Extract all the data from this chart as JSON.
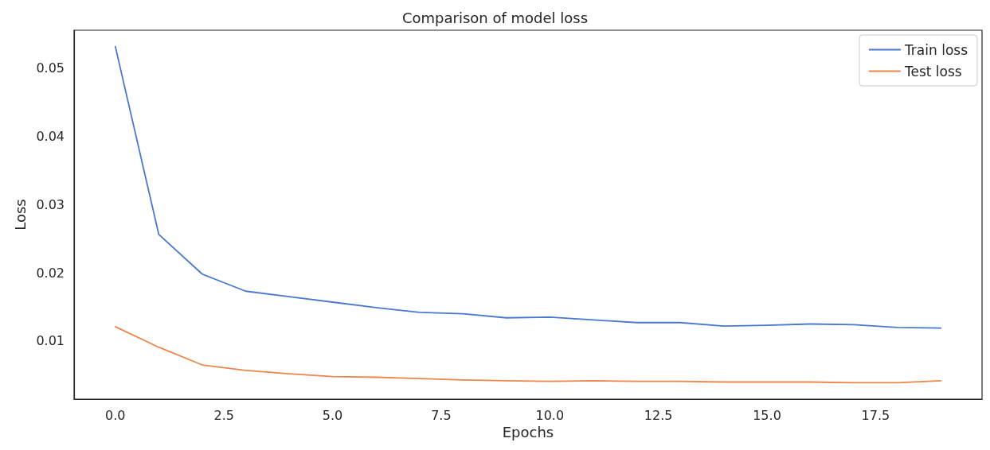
{
  "chart_data": {
    "type": "line",
    "title": "Comparison of model loss",
    "xlabel": "Epochs",
    "ylabel": "Loss",
    "x": [
      0,
      1,
      2,
      3,
      4,
      5,
      6,
      7,
      8,
      9,
      10,
      11,
      12,
      13,
      14,
      15,
      16,
      17,
      18,
      19
    ],
    "series": [
      {
        "name": "Train loss",
        "color": "#4878d0",
        "values": [
          0.0531,
          0.0256,
          0.0198,
          0.0173,
          0.0165,
          0.0157,
          0.0149,
          0.0142,
          0.014,
          0.0134,
          0.0135,
          0.0131,
          0.0127,
          0.0127,
          0.0122,
          0.0123,
          0.0125,
          0.0124,
          0.012,
          0.0119
        ]
      },
      {
        "name": "Test loss",
        "color": "#ee854a",
        "values": [
          0.0121,
          0.0091,
          0.0065,
          0.0057,
          0.0052,
          0.0048,
          0.0047,
          0.0045,
          0.0043,
          0.0042,
          0.0041,
          0.0042,
          0.0041,
          0.0041,
          0.004,
          0.004,
          0.004,
          0.0039,
          0.0039,
          0.0042
        ]
      }
    ],
    "xlim": [
      -0.95,
      19.95
    ],
    "xticks": [
      {
        "value": 0,
        "label": "0.0"
      },
      {
        "value": 2.5,
        "label": "2.5"
      },
      {
        "value": 5,
        "label": "5.0"
      },
      {
        "value": 7.5,
        "label": "7.5"
      },
      {
        "value": 10,
        "label": "10.0"
      },
      {
        "value": 12.5,
        "label": "12.5"
      },
      {
        "value": 15,
        "label": "15.0"
      },
      {
        "value": 17.5,
        "label": "17.5"
      }
    ],
    "ylim": [
      0.0015,
      0.0555
    ],
    "yticks": [
      0.01,
      0.02,
      0.03,
      0.04,
      0.05
    ],
    "grid": false,
    "legend": "top right",
    "marker": "none",
    "line_style": "solid"
  }
}
